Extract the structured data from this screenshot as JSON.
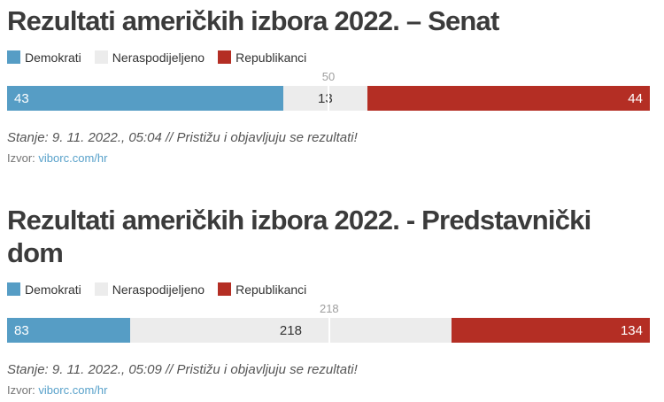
{
  "chart_data": [
    {
      "type": "bar",
      "subtype": "stacked-horizontal",
      "title": "Rezultati američkih izbora 2022. – Senat",
      "categories": [
        "Demokrati",
        "Neraspodijeljeno",
        "Republikanci"
      ],
      "values": [
        43,
        13,
        44
      ],
      "total": 100,
      "series": [
        {
          "name": "Demokrati",
          "value": 43,
          "color": "#569dc5",
          "label_color": "#ffffff",
          "align": "left"
        },
        {
          "name": "Neraspodijeljeno",
          "value": 13,
          "color": "#ececec",
          "label_color": "#333333",
          "align": "center"
        },
        {
          "name": "Republikanci",
          "value": 44,
          "color": "#b42e24",
          "label_color": "#ffffff",
          "align": "right"
        }
      ],
      "majority": {
        "label": "50",
        "value": 50
      },
      "legend_position": "top",
      "legend": [
        {
          "label": "Demokrati",
          "color": "#569dc5"
        },
        {
          "label": "Neraspodijeljeno",
          "color": "#ececec"
        },
        {
          "label": "Republikanci",
          "color": "#b42e24"
        }
      ],
      "status": "Stanje: 9. 11. 2022., 05:04 // Pristižu i objavljuju se rezultati!",
      "source_label": "Izvor:",
      "source_link_text": "viborc.com/hr"
    },
    {
      "type": "bar",
      "subtype": "stacked-horizontal",
      "title": "Rezultati američkih izbora 2022. - Predstavnički dom",
      "categories": [
        "Demokrati",
        "Neraspodijeljeno",
        "Republikanci"
      ],
      "values": [
        83,
        218,
        134
      ],
      "total": 435,
      "series": [
        {
          "name": "Demokrati",
          "value": 83,
          "color": "#569dc5",
          "label_color": "#ffffff",
          "align": "left"
        },
        {
          "name": "Neraspodijeljeno",
          "value": 218,
          "color": "#ececec",
          "label_color": "#333333",
          "align": "center"
        },
        {
          "name": "Republikanci",
          "value": 134,
          "color": "#b42e24",
          "label_color": "#ffffff",
          "align": "right"
        }
      ],
      "majority": {
        "label": "218",
        "value": 218
      },
      "legend_position": "top",
      "legend": [
        {
          "label": "Demokrati",
          "color": "#569dc5"
        },
        {
          "label": "Neraspodijeljeno",
          "color": "#ececec"
        },
        {
          "label": "Republikanci",
          "color": "#b42e24"
        }
      ],
      "status": "Stanje: 9. 11. 2022., 05:09 // Pristižu i objavljuju se rezultati!",
      "source_label": "Izvor:",
      "source_link_text": "viborc.com/hr"
    }
  ],
  "colors": {
    "title": "#3b3b3b",
    "legend_text": "#333333",
    "marker_label": "#9e9e9e",
    "marker_line": "#ffffff",
    "status_text": "#555555",
    "source_text": "#757575",
    "link": "#58a1ca"
  }
}
